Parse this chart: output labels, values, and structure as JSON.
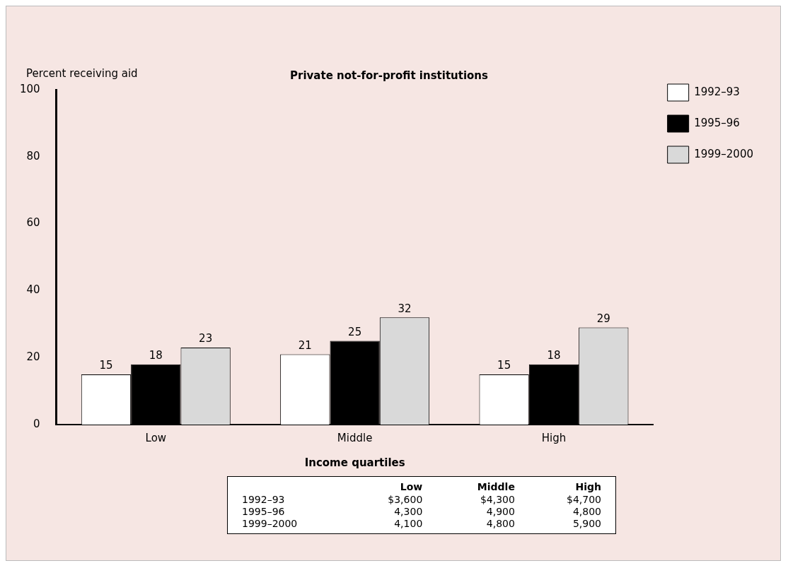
{
  "chart_data": {
    "type": "bar",
    "title": "Private not-for-profit institutions",
    "xlabel": "Income quartiles",
    "ylabel": "Percent receiving aid",
    "categories": [
      "Low",
      "Middle",
      "High"
    ],
    "series": [
      {
        "name": "1992–93",
        "color": "#ffffff",
        "values": [
          15,
          21,
          15
        ]
      },
      {
        "name": "1995–96",
        "color": "#000000",
        "values": [
          18,
          25,
          18
        ]
      },
      {
        "name": "1999–2000",
        "color": "#d9d9d9",
        "values": [
          23,
          32,
          29
        ]
      }
    ],
    "ylim": [
      0,
      100
    ],
    "yticks": [
      0,
      20,
      40,
      60,
      80,
      100
    ],
    "grid": false,
    "legend": "top right",
    "data_labels": true,
    "annotations": [
      "Low",
      "Middle",
      "High",
      "1992–93",
      "$3,600",
      "$4,300",
      "$4,700",
      "1995–96",
      "4,300",
      "4,900",
      "4,800",
      "1999–2000",
      "4,100",
      "4,800",
      "5,900"
    ]
  }
}
